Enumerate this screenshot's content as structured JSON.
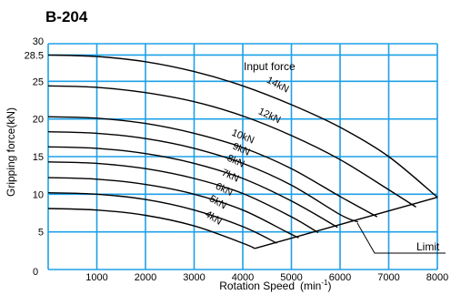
{
  "chart_data": {
    "type": "line",
    "title": "B-204",
    "xlabel": "Rotation Speed",
    "xlabel_unit": "(min",
    "xlabel_unit_exp": "-1",
    "xlabel_unit_close": ")",
    "ylabel": "Gripping force(kN)",
    "xlim": [
      0,
      8000
    ],
    "ylim": [
      0,
      30
    ],
    "x_ticks": [
      1000,
      2000,
      3000,
      4000,
      5000,
      6000,
      7000,
      8000
    ],
    "x_origin_label": "0",
    "y_ticks": [
      5,
      10,
      15,
      20,
      25,
      28.5,
      30
    ],
    "grid": true,
    "grid_color": "#1ea0e6",
    "curve_color": "#000000",
    "legend_title": "Input  force",
    "limit_label": "Limit",
    "series": [
      {
        "name": "14kN",
        "x": [
          0,
          1000,
          2000,
          3000,
          4000,
          5000,
          6000,
          7000,
          8000
        ],
        "y": [
          28.5,
          28.3,
          27.6,
          26.3,
          24.4,
          21.9,
          18.9,
          15.0,
          9.6
        ]
      },
      {
        "name": "12kN",
        "x": [
          0,
          1000,
          2000,
          3000,
          4000,
          5000,
          6000,
          7000,
          7560
        ],
        "y": [
          24.4,
          24.2,
          23.5,
          22.3,
          20.4,
          17.8,
          14.6,
          10.6,
          8.3
        ]
      },
      {
        "name": "10kN",
        "x": [
          0,
          1000,
          2000,
          3000,
          4000,
          5000,
          6000,
          6760
        ],
        "y": [
          20.3,
          20.1,
          19.4,
          18.1,
          16.2,
          13.4,
          9.7,
          7.0
        ]
      },
      {
        "name": "9kN",
        "x": [
          0,
          1000,
          2000,
          3000,
          4000,
          5000,
          6000,
          6370
        ],
        "y": [
          18.3,
          18.1,
          17.4,
          16.1,
          14.1,
          11.2,
          7.3,
          6.3
        ]
      },
      {
        "name": "8kN",
        "x": [
          0,
          1000,
          2000,
          3000,
          4000,
          5000,
          5950
        ],
        "y": [
          16.3,
          16.1,
          15.4,
          14.1,
          12.1,
          9.1,
          5.6
        ]
      },
      {
        "name": "7kN",
        "x": [
          0,
          1000,
          2000,
          3000,
          4000,
          5000,
          5550
        ],
        "y": [
          14.3,
          14.1,
          13.4,
          12.1,
          10.1,
          7.0,
          4.9
        ]
      },
      {
        "name": "6kN",
        "x": [
          0,
          1000,
          2000,
          3000,
          4000,
          4900,
          5150
        ],
        "y": [
          12.2,
          12.0,
          11.3,
          10.0,
          7.9,
          5.0,
          4.2
        ]
      },
      {
        "name": "5kN",
        "x": [
          0,
          1000,
          2000,
          3000,
          4000,
          4700
        ],
        "y": [
          10.2,
          10.0,
          9.3,
          7.9,
          5.7,
          3.5
        ]
      },
      {
        "name": "4kN",
        "x": [
          0,
          1000,
          2000,
          3000,
          4000,
          4250
        ],
        "y": [
          8.1,
          7.9,
          7.2,
          5.8,
          3.5,
          2.8
        ]
      }
    ],
    "limit_line": {
      "x": [
        4250,
        8000
      ],
      "y": [
        2.8,
        9.6
      ]
    }
  }
}
